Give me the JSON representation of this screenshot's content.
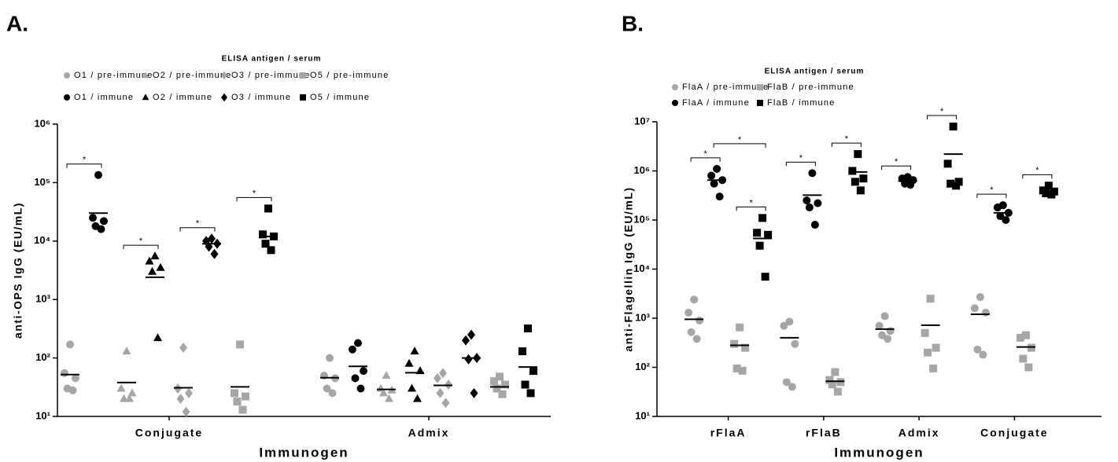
{
  "chart_data": [
    {
      "type": "scatter",
      "panel_label": "A.",
      "y_label": "anti-OPS IgG (EU/mL)",
      "x_label": "Immunogen",
      "legend_title": "ELISA antigen / serum",
      "log_y": true,
      "categories": [
        "Conjugate",
        "Admix"
      ],
      "ylim": [
        10,
        1000000
      ],
      "yticks": [
        {
          "value": 10,
          "label": "10¹"
        },
        {
          "value": 100,
          "label": "10²"
        },
        {
          "value": 1000,
          "label": "10³"
        },
        {
          "value": 10000,
          "label": "10⁴"
        },
        {
          "value": 100000,
          "label": "10⁵"
        },
        {
          "value": 1000000,
          "label": "10⁶"
        }
      ],
      "series": [
        {
          "name": "O1 / pre-immune",
          "color": "#a6a6a6",
          "marker": "circle",
          "values": [
            [
              170,
              55,
              45,
              30,
              28
            ],
            [
              100,
              50,
              45,
              30,
              25
            ]
          ],
          "means": [
            52,
            46
          ]
        },
        {
          "name": "O2 / pre-immune",
          "color": "#a6a6a6",
          "marker": "triangle",
          "values": [
            [
              130,
              30,
              25,
              20,
              20
            ],
            [
              50,
              30,
              28,
              25,
              20
            ]
          ],
          "means": [
            38,
            29
          ]
        },
        {
          "name": "O3 / pre-immune",
          "color": "#a6a6a6",
          "marker": "diamond",
          "values": [
            [
              150,
              30,
              25,
              20,
              12
            ],
            [
              55,
              45,
              35,
              25,
              17
            ]
          ],
          "means": [
            31,
            34
          ]
        },
        {
          "name": "O5 / pre-immune",
          "color": "#a6a6a6",
          "marker": "square",
          "values": [
            [
              170,
              25,
              22,
              18,
              13
            ],
            [
              48,
              40,
              35,
              30,
              24
            ]
          ],
          "means": [
            32,
            32
          ]
        },
        {
          "name": "O1 / immune",
          "color": "#000000",
          "marker": "circle",
          "values": [
            [
              135000,
              25000,
              22000,
              18000,
              16000
            ],
            [
              180,
              140,
              60,
              45,
              30
            ]
          ],
          "means": [
            30000,
            72
          ]
        },
        {
          "name": "O2 / immune",
          "color": "#000000",
          "marker": "triangle",
          "values": [
            [
              5500,
              4500,
              3500,
              3000,
              220
            ],
            [
              130,
              80,
              60,
              30,
              20
            ]
          ],
          "means": [
            2400,
            56
          ]
        },
        {
          "name": "O3 / immune",
          "color": "#000000",
          "marker": "diamond",
          "values": [
            [
              11000,
              10000,
              9000,
              8000,
              6000
            ],
            [
              250,
              200,
              100,
              95,
              25
            ]
          ],
          "means": [
            9000,
            100
          ]
        },
        {
          "name": "O5 / immune",
          "color": "#000000",
          "marker": "square",
          "values": [
            [
              36000,
              13000,
              12000,
              9000,
              7000
            ],
            [
              320,
              130,
              60,
              35,
              25
            ]
          ],
          "means": [
            12000,
            70
          ]
        }
      ],
      "comparisons": [
        {
          "category": 0,
          "series": [
            0,
            4
          ],
          "label": "*"
        },
        {
          "category": 0,
          "series": [
            1,
            5
          ],
          "label": "*"
        },
        {
          "category": 0,
          "series": [
            2,
            6
          ],
          "label": "*"
        },
        {
          "category": 0,
          "series": [
            3,
            7
          ],
          "label": "*"
        }
      ]
    },
    {
      "type": "scatter",
      "panel_label": "B.",
      "y_label": "anti-Flagellin IgG (EU/mL)",
      "x_label": "Immunogen",
      "legend_title": "ELISA antigen / serum",
      "log_y": true,
      "categories": [
        "rFlaA",
        "rFlaB",
        "Admix",
        "Conjugate"
      ],
      "ylim": [
        10,
        10000000
      ],
      "yticks": [
        {
          "value": 10,
          "label": "10¹"
        },
        {
          "value": 100,
          "label": "10²"
        },
        {
          "value": 1000,
          "label": "10³"
        },
        {
          "value": 10000,
          "label": "10⁴"
        },
        {
          "value": 100000,
          "label": "10⁵"
        },
        {
          "value": 1000000,
          "label": "10⁶"
        },
        {
          "value": 10000000,
          "label": "10⁷"
        }
      ],
      "series": [
        {
          "name": "FlaA / pre-immune",
          "color": "#a6a6a6",
          "marker": "circle",
          "values": [
            [
              2400,
              1300,
              900,
              520,
              380
            ],
            [
              850,
              700,
              300,
              50,
              40
            ],
            [
              1100,
              700,
              550,
              450,
              380
            ],
            [
              2700,
              1600,
              1300,
              230,
              180
            ]
          ],
          "means": [
            950,
            400,
            600,
            1200
          ]
        },
        {
          "name": "FlaB / pre-immune",
          "color": "#a6a6a6",
          "marker": "square",
          "values": [
            [
              650,
              300,
              250,
              95,
              85
            ],
            [
              80,
              55,
              50,
              45,
              32
            ],
            [
              2500,
              500,
              250,
              200,
              95
            ],
            [
              450,
              400,
              250,
              150,
              100
            ]
          ],
          "means": [
            280,
            52,
            720,
            260
          ]
        },
        {
          "name": "FlaA / immune",
          "color": "#000000",
          "marker": "circle",
          "values": [
            [
              1100000,
              800000,
              650000,
              550000,
              300000
            ],
            [
              900000,
              250000,
              220000,
              180000,
              80000
            ],
            [
              750000,
              700000,
              650000,
              550000,
              520000
            ],
            [
              200000,
              180000,
              140000,
              120000,
              100000
            ]
          ],
          "means": [
            650000,
            320000,
            620000,
            140000
          ]
        },
        {
          "name": "FlaB / immune",
          "color": "#000000",
          "marker": "square",
          "values": [
            [
              110000,
              55000,
              50000,
              30000,
              7000
            ],
            [
              2200000,
              1000000,
              700000,
              600000,
              400000
            ],
            [
              8000000,
              1400000,
              600000,
              550000,
              500000
            ],
            [
              500000,
              400000,
              380000,
              350000,
              330000
            ]
          ],
          "means": [
            42000,
            950000,
            2200000,
            360000
          ]
        }
      ],
      "comparisons": [
        {
          "category": 0,
          "series": [
            0,
            2
          ],
          "label": "*"
        },
        {
          "category": 0,
          "series": [
            1,
            3
          ],
          "label": "*"
        },
        {
          "category": 0,
          "series": [
            2,
            3
          ],
          "label": "*"
        },
        {
          "category": 1,
          "series": [
            0,
            2
          ],
          "label": "*"
        },
        {
          "category": 1,
          "series": [
            1,
            3
          ],
          "label": "*"
        },
        {
          "category": 2,
          "series": [
            0,
            2
          ],
          "label": "*"
        },
        {
          "category": 2,
          "series": [
            1,
            3
          ],
          "label": "*"
        },
        {
          "category": 3,
          "series": [
            0,
            2
          ],
          "label": "*"
        },
        {
          "category": 3,
          "series": [
            1,
            3
          ],
          "label": "*"
        }
      ]
    }
  ]
}
